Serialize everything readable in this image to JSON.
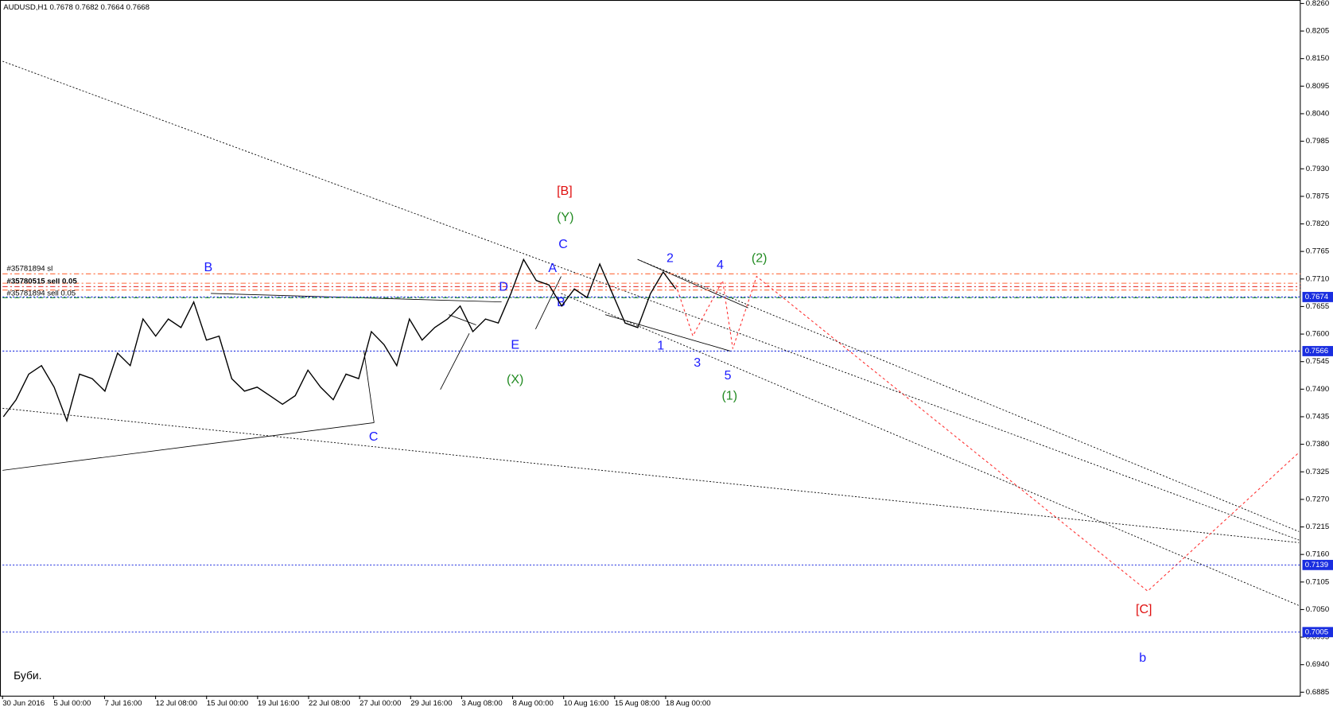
{
  "chart_data": {
    "type": "line",
    "title": "AUDUSD,H1 0.7678 0.7682 0.7664 0.7668",
    "x_labels": [
      "30 Jun 2016",
      "5 Jul 00:00",
      "7 Jul 16:00",
      "12 Jul 08:00",
      "15 Jul 00:00",
      "19 Jul 16:00",
      "22 Jul 08:00",
      "27 Jul 00:00",
      "29 Jul 16:00",
      "3 Aug 08:00",
      "8 Aug 00:00",
      "10 Aug 16:00",
      "15 Aug 08:00",
      "18 Aug 00:00"
    ],
    "color": "#000000",
    "values": [
      0.7435,
      0.7469,
      0.752,
      0.7537,
      0.7494,
      0.7427,
      0.752,
      0.7511,
      0.7486,
      0.7562,
      0.7537,
      0.763,
      0.7596,
      0.763,
      0.7613,
      0.7664,
      0.7588,
      0.7596,
      0.7511,
      0.7486,
      0.7494,
      0.7477,
      0.746,
      0.7477,
      0.7528,
      0.7494,
      0.7469,
      0.752,
      0.7511,
      0.7605,
      0.7579,
      0.7537,
      0.763,
      0.7588,
      0.7613,
      0.763,
      0.7656,
      0.7605,
      0.763,
      0.7622,
      0.7681,
      0.7749,
      0.7707,
      0.7698,
      0.7656,
      0.769,
      0.7673,
      0.774,
      0.7681,
      0.7622,
      0.7613,
      0.7681,
      0.7724,
      0.769
    ],
    "ylim": [
      0.6878,
      0.8267
    ],
    "yticks": [
      {
        "value": 0.826,
        "label": "0.8260"
      },
      {
        "value": 0.8205,
        "label": "0.8205"
      },
      {
        "value": 0.815,
        "label": "0.8150"
      },
      {
        "value": 0.8095,
        "label": "0.8095"
      },
      {
        "value": 0.804,
        "label": "0.8040"
      },
      {
        "value": 0.7985,
        "label": "0.7985"
      },
      {
        "value": 0.793,
        "label": "0.7930"
      },
      {
        "value": 0.7875,
        "label": "0.7875"
      },
      {
        "value": 0.782,
        "label": "0.7820"
      },
      {
        "value": 0.7765,
        "label": "0.7765"
      },
      {
        "value": 0.771,
        "label": "0.7710"
      },
      {
        "value": 0.7655,
        "label": "0.7655"
      },
      {
        "value": 0.76,
        "label": "0.7600"
      },
      {
        "value": 0.7545,
        "label": "0.7545"
      },
      {
        "value": 0.749,
        "label": "0.7490"
      },
      {
        "value": 0.7435,
        "label": "0.7435"
      },
      {
        "value": 0.738,
        "label": "0.7380"
      },
      {
        "value": 0.7325,
        "label": "0.7325"
      },
      {
        "value": 0.727,
        "label": "0.7270"
      },
      {
        "value": 0.7215,
        "label": "0.7215"
      },
      {
        "value": 0.716,
        "label": "0.7160"
      },
      {
        "value": 0.7105,
        "label": "0.7105"
      },
      {
        "value": 0.705,
        "label": "0.7050"
      },
      {
        "value": 0.6995,
        "label": "0.6995"
      },
      {
        "value": 0.694,
        "label": "0.6940"
      },
      {
        "value": 0.6885,
        "label": "0.6885"
      }
    ],
    "levels": [
      {
        "value": 0.7674,
        "label": "0.7674"
      },
      {
        "value": 0.7566,
        "label": "0.7566"
      },
      {
        "value": 0.7139,
        "label": "0.7139"
      },
      {
        "value": 0.7005,
        "label": "0.7005"
      }
    ],
    "orders": [
      "#35781894 sl",
      "#35780515 sell 0.05",
      "#35781894 sell 0.05"
    ],
    "annotations": {
      "blue": [
        "B",
        "C",
        "D",
        "E",
        "A",
        "B",
        "C",
        "1",
        "2",
        "3",
        "4",
        "5",
        "b"
      ],
      "green": [
        "(X)",
        "(Y)",
        "(1)",
        "(2)"
      ],
      "red": [
        "[B]",
        "[C]"
      ]
    },
    "note": "Буби."
  }
}
